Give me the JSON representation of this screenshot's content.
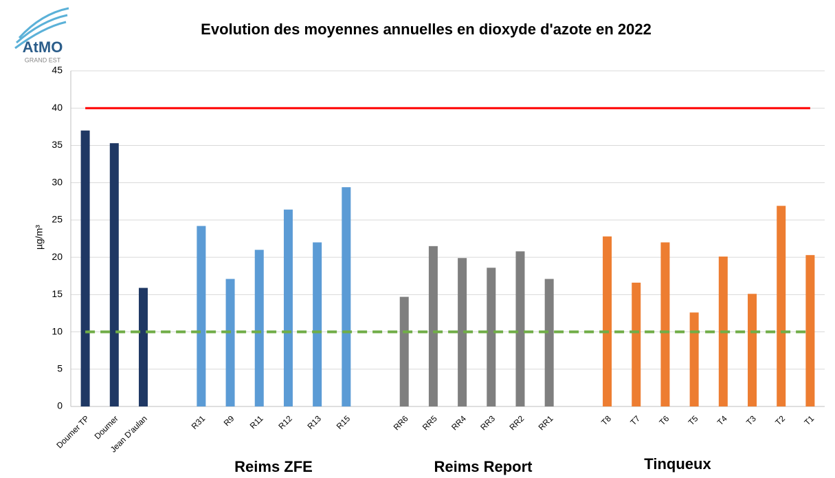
{
  "logo": {
    "name": "AtMO",
    "subtitle": "GRAND EST"
  },
  "chart_data": {
    "type": "bar",
    "title": "Evolution des moyennes annuelles en dioxyde d'azote en 2022",
    "y_label": "µg/m³",
    "categories": [
      "Doumer TP",
      "Doumer",
      "Jean D'aulan",
      null,
      "R31",
      "R9",
      "R11",
      "R12",
      "R13",
      "R15",
      null,
      "RR6",
      "RR5",
      "RR4",
      "RR3",
      "RR2",
      "RR1",
      null,
      "T8",
      "T7",
      "T6",
      "T5",
      "T4",
      "T3",
      "T2",
      "T1"
    ],
    "values": [
      37.0,
      35.3,
      15.9,
      null,
      24.2,
      17.1,
      21.0,
      26.4,
      22.0,
      29.4,
      null,
      14.7,
      21.5,
      19.9,
      18.6,
      20.8,
      17.1,
      null,
      22.8,
      16.6,
      22.0,
      12.6,
      20.1,
      15.1,
      26.9,
      20.3
    ],
    "colors": [
      "#1f3864",
      "#1f3864",
      "#1f3864",
      null,
      "#5b9bd5",
      "#5b9bd5",
      "#5b9bd5",
      "#5b9bd5",
      "#5b9bd5",
      "#5b9bd5",
      null,
      "#7f7f7f",
      "#7f7f7f",
      "#7f7f7f",
      "#7f7f7f",
      "#7f7f7f",
      "#7f7f7f",
      null,
      "#ed7d31",
      "#ed7d31",
      "#ed7d31",
      "#ed7d31",
      "#ed7d31",
      "#ed7d31",
      "#ed7d31",
      "#ed7d31"
    ],
    "ylim": [
      0,
      45
    ],
    "yticks": [
      0,
      5,
      10,
      15,
      20,
      25,
      30,
      35,
      40,
      45
    ],
    "grid": true,
    "reference_lines": [
      {
        "value": 40,
        "color": "#ff0000",
        "style": "solid"
      },
      {
        "value": 10,
        "color": "#70ad47",
        "style": "dashed"
      }
    ],
    "annotations": [
      "Reims ZFE",
      "Reims Report",
      "Tinqueux"
    ]
  }
}
